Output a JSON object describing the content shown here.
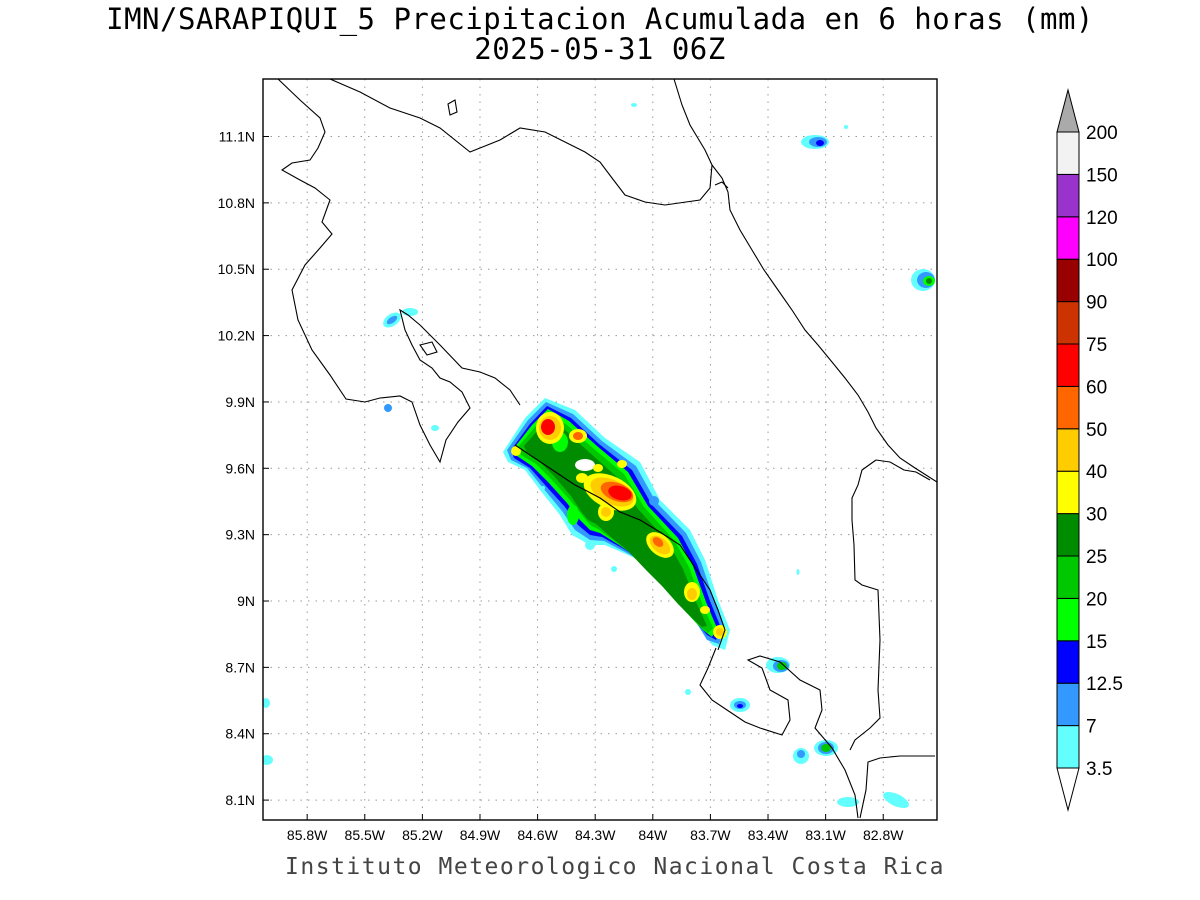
{
  "title": {
    "line1": "IMN/SARAPIQUI_5 Precipitacion Acumulada en 6 horas (mm)",
    "line2": "2025-05-31 06Z"
  },
  "footer": "Instituto Meteorologico Nacional Costa Rica",
  "map": {
    "region": "Costa Rica",
    "lon_range": [
      -86.03,
      -82.52
    ],
    "lat_range": [
      8.01,
      11.36
    ],
    "grid": true,
    "lon_ticks": [
      "85.8W",
      "85.5W",
      "85.2W",
      "84.9W",
      "84.6W",
      "84.3W",
      "84W",
      "83.7W",
      "83.4W",
      "83.1W",
      "82.8W"
    ],
    "lat_ticks": [
      "11.1N",
      "10.8N",
      "10.5N",
      "10.2N",
      "9.9N",
      "9.6N",
      "9.3N",
      "9N",
      "8.7N",
      "8.4N",
      "8.1N"
    ]
  },
  "colorbar": {
    "levels": [
      "3.5",
      "7",
      "12.5",
      "15",
      "20",
      "25",
      "30",
      "40",
      "50",
      "60",
      "75",
      "90",
      "100",
      "120",
      "150",
      "200"
    ],
    "colors": [
      "#ffffff",
      "#63ffff",
      "#3399ff",
      "#0000ff",
      "#00ff00",
      "#00c800",
      "#008c00",
      "#ffff00",
      "#ffcc00",
      "#ff6600",
      "#ff0000",
      "#cc3300",
      "#990000",
      "#ff00ff",
      "#9933cc",
      "#f2f2f2",
      "#aaaaaa"
    ]
  }
}
